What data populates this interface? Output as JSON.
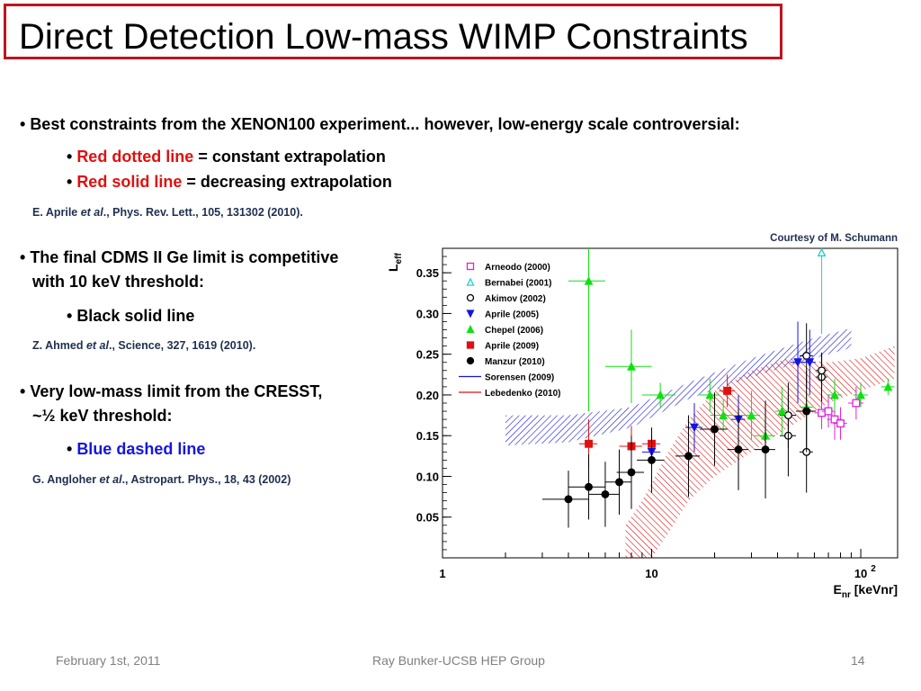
{
  "slide": {
    "title": "Direct Detection Low-mass WIMP Constraints",
    "bullet1": "Best constraints from the XENON100 experiment... however, low-energy scale controversial:",
    "sub1a_colored": "Red dotted line",
    "sub1a_rest": " = constant extrapolation",
    "sub1b_colored": "Red solid line",
    "sub1b_rest": " = decreasing extrapolation",
    "ref1_pre": "E. Aprile ",
    "ref1_etal": "et al",
    "ref1_post": "., Phys. Rev. Lett., 105, 131302 (2010).",
    "bullet2_line1": "The final CDMS II Ge limit is competitive",
    "bullet2_line2": "with 10 keV threshold:",
    "sub2": "Black solid line",
    "ref2_pre": "Z. Ahmed ",
    "ref2_etal": "et al",
    "ref2_post": "., Science, 327, 1619 (2010).",
    "bullet3_line1": "Very low-mass limit from the CRESST,",
    "bullet3_line2": "~½ keV threshold:",
    "sub3": "Blue dashed line",
    "ref3_pre": "G. Angloher ",
    "ref3_etal": "et al",
    "ref3_post": "., Astropart. Phys., 18, 43 (2002)",
    "courtesy": "Courtesy of M. Schumann",
    "footer_date": "February 1st, 2011",
    "footer_group": "Ray Bunker-UCSB HEP Group",
    "footer_page": "14",
    "colors": {
      "title_border": "#c0141e",
      "red_text": "#e01010",
      "blue_text": "#1515e0"
    }
  },
  "chart_data": {
    "type": "scatter",
    "xscale": "log",
    "xlim": [
      1,
      150
    ],
    "ylim": [
      0,
      0.38
    ],
    "ylabel_main": "L",
    "ylabel_sub": "eff",
    "xlabel_main": "E",
    "xlabel_sub": "nr",
    "xlabel_unit": " [keVnr]",
    "yticks": [
      "0.05",
      "0.10",
      "0.15",
      "0.20",
      "0.25",
      "0.30",
      "0.35"
    ],
    "ytick_values": [
      0.05,
      0.1,
      0.15,
      0.2,
      0.25,
      0.3,
      0.35
    ],
    "xtick_labels": [
      {
        "value": 1,
        "label": "1"
      },
      {
        "value": 10,
        "label": "10"
      },
      {
        "value": 100,
        "label": "10",
        "sup": "2"
      }
    ],
    "legend_position": "top-left",
    "series": [
      {
        "name": "Arneodo (2000)",
        "marker": "open-square",
        "color": "#e020e0",
        "points": [
          [
            65,
            0.178,
            5,
            0.02
          ],
          [
            70,
            0.18,
            5,
            0.02
          ],
          [
            75,
            0.17,
            6,
            0.025
          ],
          [
            80,
            0.165,
            6,
            0.02
          ],
          [
            95,
            0.19,
            8,
            0.02
          ]
        ]
      },
      {
        "name": "Bernabei (2001)",
        "marker": "open-triangle",
        "color": "#20d0d0",
        "points": [
          [
            65,
            0.375,
            0,
            0.1
          ]
        ]
      },
      {
        "name": "Akimov (2002)",
        "marker": "open-circle",
        "color": "#000000",
        "points": [
          [
            45,
            0.15,
            4,
            0.05
          ],
          [
            45,
            0.175,
            4,
            0.04
          ],
          [
            55,
            0.13,
            4,
            0.05
          ],
          [
            55,
            0.248,
            4,
            0.04
          ],
          [
            65,
            0.222,
            4,
            0.03
          ],
          [
            65,
            0.23,
            4,
            0.02
          ]
        ]
      },
      {
        "name": "Aprile (2005)",
        "marker": "filled-triangle-down",
        "color": "#1515e0",
        "points": [
          [
            10,
            0.13,
            1,
            0.02
          ],
          [
            16,
            0.16,
            1.5,
            0.03
          ],
          [
            26,
            0.17,
            2,
            0.03
          ],
          [
            50,
            0.24,
            4,
            0.05
          ],
          [
            57,
            0.24,
            4,
            0.04
          ]
        ]
      },
      {
        "name": "Chepel (2006)",
        "marker": "filled-triangle-up",
        "color": "#10e010",
        "points": [
          [
            5,
            0.34,
            1,
            0.16
          ],
          [
            8,
            0.235,
            2,
            0.045
          ],
          [
            11,
            0.2,
            2,
            0.015
          ],
          [
            19,
            0.2,
            2,
            0.02
          ],
          [
            22,
            0.175,
            3,
            0.02
          ],
          [
            30,
            0.175,
            3,
            0.03
          ],
          [
            35,
            0.15,
            4,
            0.02
          ],
          [
            42,
            0.18,
            3,
            0.03
          ],
          [
            55,
            0.185,
            4,
            0.02
          ],
          [
            75,
            0.2,
            6,
            0.02
          ],
          [
            100,
            0.2,
            8,
            0.015
          ],
          [
            135,
            0.21,
            10,
            0.01
          ]
        ]
      },
      {
        "name": "Aprile (2009)",
        "marker": "filled-square",
        "color": "#e01010",
        "points": [
          [
            5,
            0.14,
            0.5,
            0.03
          ],
          [
            8,
            0.137,
            1,
            0.025
          ],
          [
            10,
            0.14,
            1,
            0.01
          ],
          [
            23,
            0.205,
            2,
            0.02
          ]
        ]
      },
      {
        "name": "Manzur (2010)",
        "marker": "filled-circle",
        "color": "#000000",
        "points": [
          [
            4,
            0.072,
            1,
            0.035
          ],
          [
            5,
            0.087,
            1,
            0.04
          ],
          [
            6,
            0.078,
            1,
            0.04
          ],
          [
            7,
            0.093,
            1,
            0.04
          ],
          [
            8,
            0.105,
            1.2,
            0.045
          ],
          [
            10,
            0.12,
            1.5,
            0.04
          ],
          [
            15,
            0.125,
            2,
            0.05
          ],
          [
            20,
            0.158,
            3,
            0.045
          ],
          [
            26,
            0.133,
            3,
            0.05
          ],
          [
            35,
            0.133,
            4,
            0.06
          ],
          [
            55,
            0.18,
            6,
            0.05
          ]
        ]
      },
      {
        "name": "Sorensen (2009)",
        "marker": "line",
        "color": "#1515e0",
        "style": "blue hatched band"
      },
      {
        "name": "Lebedenko (2010)",
        "marker": "line",
        "color": "#e01010",
        "style": "red hatched band"
      }
    ]
  }
}
